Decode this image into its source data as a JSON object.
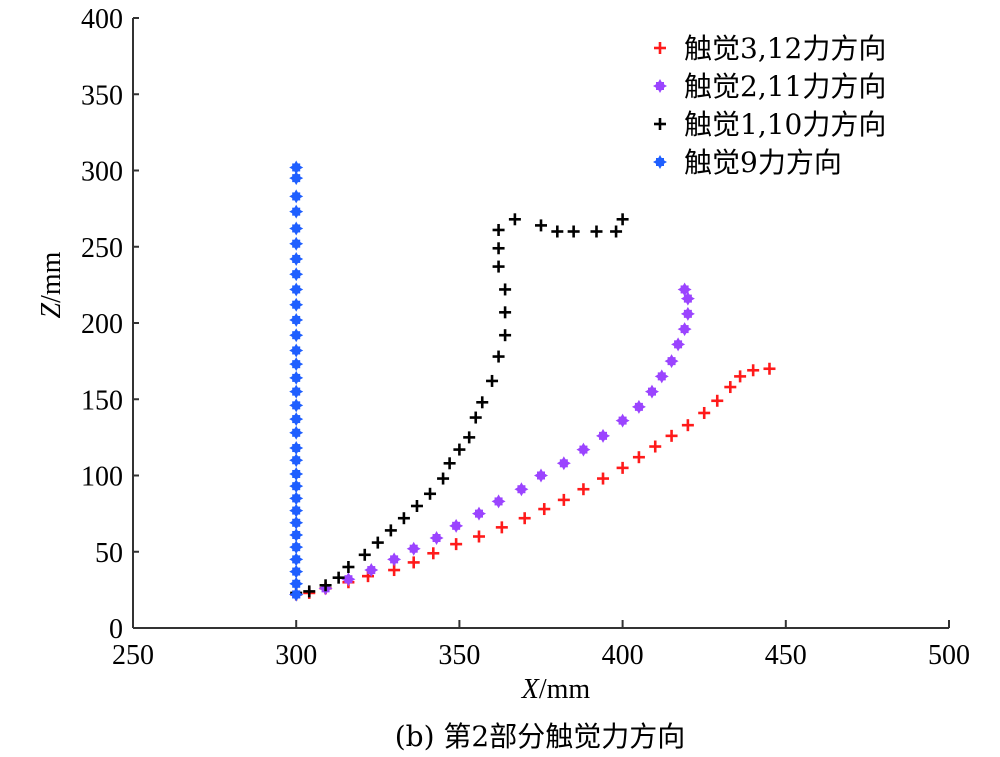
{
  "chart_data": {
    "type": "scatter",
    "title": "",
    "caption": "(b) 第2部分触觉力方向",
    "xlabel_italic": "X",
    "xlabel_unit": "/mm",
    "ylabel_italic": "Z",
    "ylabel_unit": "/mm",
    "xlim": [
      250,
      500
    ],
    "ylim": [
      0,
      400
    ],
    "xticks": [
      250,
      300,
      350,
      400,
      450,
      500
    ],
    "yticks": [
      0,
      50,
      100,
      150,
      200,
      250,
      300,
      350,
      400
    ],
    "xtick_labels": [
      "250",
      "300",
      "350",
      "400",
      "450",
      "500"
    ],
    "ytick_labels": [
      "0",
      "50",
      "100",
      "150",
      "200",
      "250",
      "300",
      "350",
      "400"
    ],
    "grid": false,
    "legend_position": "top-right",
    "series": [
      {
        "name": "触觉3,12力方向",
        "color": "#ff1a1a",
        "marker": "plus",
        "x": [
          300,
          304,
          309,
          316,
          322,
          330,
          336,
          342,
          349,
          356,
          363,
          370,
          376,
          382,
          388,
          394,
          400,
          405,
          410,
          415,
          420,
          425,
          429,
          433,
          436,
          440,
          445
        ],
        "y": [
          22,
          23,
          26,
          30,
          34,
          38,
          43,
          49,
          55,
          60,
          66,
          72,
          78,
          84,
          91,
          98,
          105,
          112,
          119,
          126,
          133,
          141,
          149,
          158,
          165,
          169,
          170
        ]
      },
      {
        "name": "触觉2,11力方向",
        "color": "#9b44ff",
        "marker": "diamond-plus",
        "x": [
          300,
          309,
          316,
          323,
          330,
          336,
          343,
          349,
          356,
          362,
          369,
          375,
          382,
          388,
          394,
          400,
          405,
          409,
          412,
          415,
          417,
          419,
          420,
          420,
          419
        ],
        "y": [
          22,
          26,
          32,
          38,
          45,
          52,
          59,
          67,
          75,
          83,
          91,
          100,
          108,
          117,
          126,
          136,
          145,
          155,
          165,
          175,
          186,
          196,
          206,
          216,
          222
        ]
      },
      {
        "name": "触觉1,10力方向",
        "color": "#000000",
        "marker": "plus",
        "x": [
          300,
          304,
          309,
          313,
          316,
          321,
          325,
          329,
          333,
          337,
          341,
          345,
          347,
          350,
          353,
          355,
          357,
          360,
          362,
          364,
          364,
          364,
          362,
          362,
          362,
          367,
          375,
          380,
          385,
          392,
          398,
          400
        ],
        "y": [
          23,
          24,
          28,
          33,
          40,
          48,
          56,
          64,
          72,
          80,
          88,
          98,
          108,
          117,
          125,
          138,
          148,
          162,
          178,
          192,
          207,
          222,
          237,
          249,
          261,
          268,
          264,
          260,
          260,
          260,
          260,
          268
        ]
      },
      {
        "name": "触觉9力方向",
        "color": "#1f5fff",
        "marker": "diamond-plus",
        "x": [
          300,
          300,
          300,
          300,
          300,
          300,
          300,
          300,
          300,
          300,
          300,
          300,
          300,
          300,
          300,
          300,
          300,
          300,
          300,
          300,
          300,
          300,
          300,
          300,
          300,
          300
        ],
        "y": [
          22,
          29,
          37,
          45,
          53,
          61,
          69,
          77,
          85,
          93,
          101,
          110,
          118,
          128,
          137,
          146,
          155,
          164,
          173,
          182,
          192,
          202,
          212,
          222,
          232,
          242
        ]
      }
    ],
    "series_extra_blue": {
      "x": [
        300,
        300,
        300,
        300,
        300,
        300
      ],
      "y": [
        252,
        262,
        273,
        283,
        295,
        302
      ]
    }
  }
}
